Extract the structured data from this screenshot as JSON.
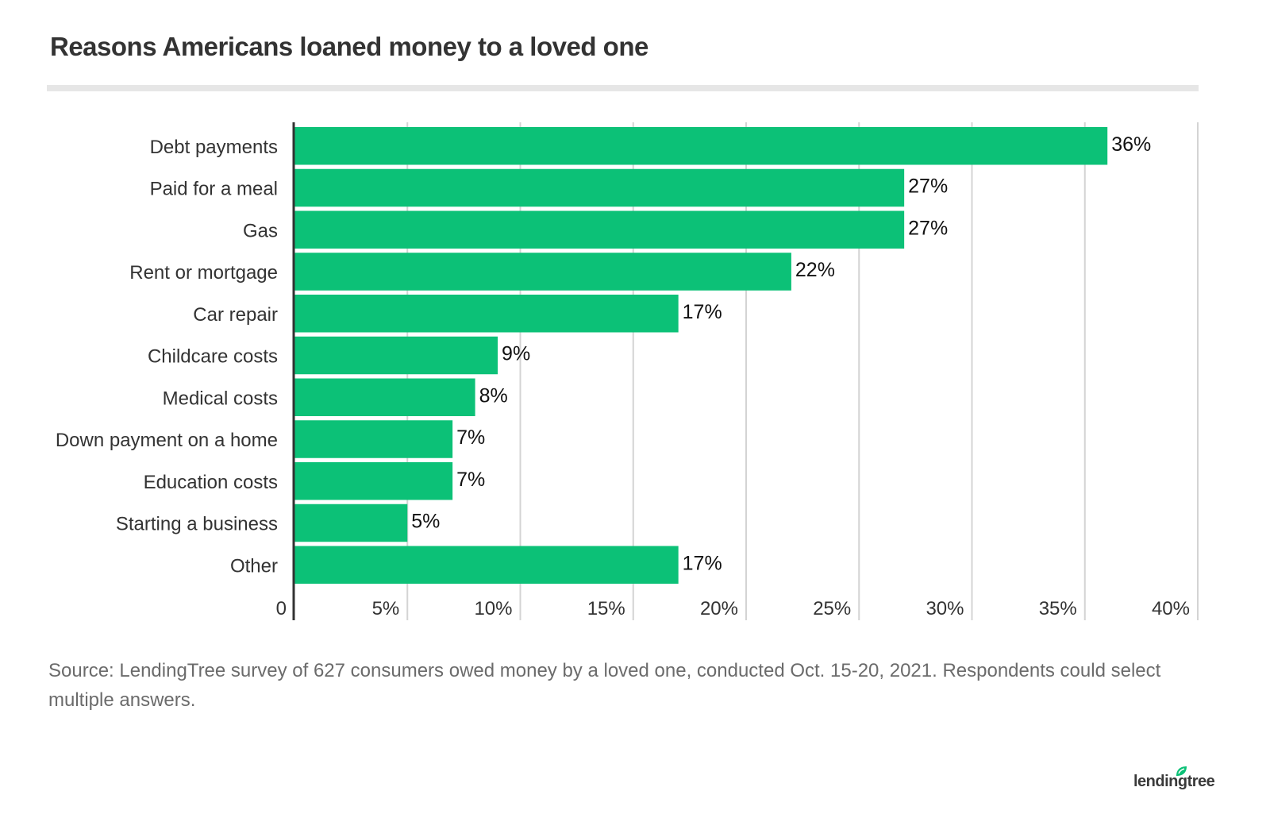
{
  "title": "Reasons Americans loaned money to a loved one",
  "source": "Source: LendingTree survey of 627 consumers owed money by a loved one, conducted Oct. 15-20, 2021. Respondents could select multiple answers.",
  "logo_text": "lendingtree",
  "colors": {
    "bar": "#0cc177",
    "grid": "#d4d4d4",
    "axis": "#333333"
  },
  "chart_data": {
    "type": "bar",
    "orientation": "horizontal",
    "title": "Reasons Americans loaned money to a loved one",
    "xlabel": "",
    "ylabel": "",
    "categories": [
      "Debt payments",
      "Paid for a meal",
      "Gas",
      "Rent or mortgage",
      "Car repair",
      "Childcare costs",
      "Medical costs",
      "Down payment on a home",
      "Education costs",
      "Starting a business",
      "Other"
    ],
    "values": [
      36,
      27,
      27,
      22,
      17,
      9,
      8,
      7,
      7,
      5,
      17
    ],
    "value_labels": [
      "36%",
      "27%",
      "27%",
      "22%",
      "17%",
      "9%",
      "8%",
      "7%",
      "7%",
      "5%",
      "17%"
    ],
    "xlim": [
      0,
      40
    ],
    "ticks": [
      0,
      5,
      10,
      15,
      20,
      25,
      30,
      35,
      40
    ],
    "tick_labels": [
      "0",
      "5%",
      "10%",
      "15%",
      "20%",
      "25%",
      "30%",
      "35%",
      "40%"
    ],
    "grid": true,
    "legend": "none"
  }
}
